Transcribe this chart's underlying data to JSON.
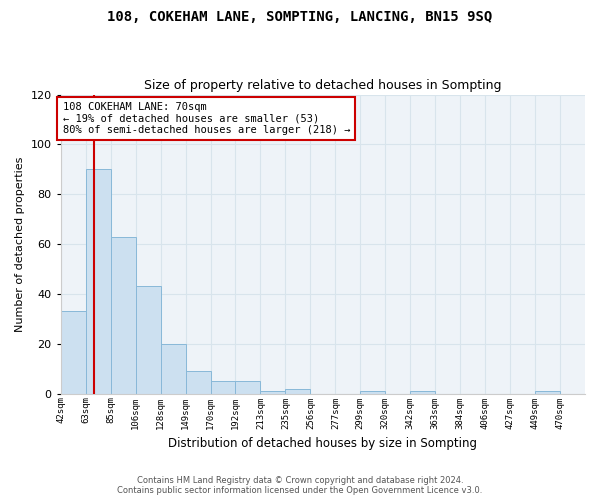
{
  "title1": "108, COKEHAM LANE, SOMPTING, LANCING, BN15 9SQ",
  "title2": "Size of property relative to detached houses in Sompting",
  "xlabel": "Distribution of detached houses by size in Sompting",
  "ylabel": "Number of detached properties",
  "bin_labels": [
    "42sqm",
    "63sqm",
    "85sqm",
    "106sqm",
    "128sqm",
    "149sqm",
    "170sqm",
    "192sqm",
    "213sqm",
    "235sqm",
    "256sqm",
    "277sqm",
    "299sqm",
    "320sqm",
    "342sqm",
    "363sqm",
    "384sqm",
    "406sqm",
    "427sqm",
    "449sqm",
    "470sqm"
  ],
  "bar_heights": [
    33,
    90,
    63,
    43,
    20,
    9,
    5,
    5,
    1,
    2,
    0,
    0,
    1,
    0,
    1,
    0,
    0,
    0,
    0,
    1,
    0
  ],
  "bar_color": "#cce0f0",
  "bar_edge_color": "#88b8d8",
  "grid_color": "#d8e4ec",
  "background_color": "#eef3f8",
  "vline_x_bin": 1.33,
  "vline_color": "#cc0000",
  "annotation_text": "108 COKEHAM LANE: 70sqm\n← 19% of detached houses are smaller (53)\n80% of semi-detached houses are larger (218) →",
  "annotation_box_color": "#ffffff",
  "annotation_box_edge": "#cc0000",
  "footer": "Contains HM Land Registry data © Crown copyright and database right 2024.\nContains public sector information licensed under the Open Government Licence v3.0.",
  "ylim": [
    0,
    120
  ],
  "yticks": [
    0,
    20,
    40,
    60,
    80,
    100,
    120
  ],
  "n_bins": 21
}
